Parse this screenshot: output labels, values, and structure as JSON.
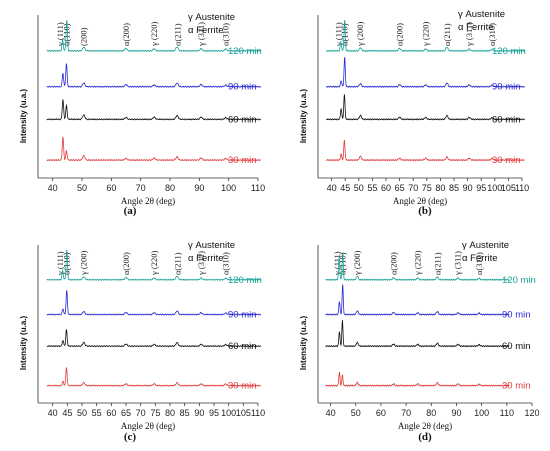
{
  "chart_data": [
    {
      "type": "line",
      "panel_label": "(a)",
      "xlabel": "Angle 2θ (deg)",
      "ylabel": "Intensity (u.a.)",
      "xlim": [
        35,
        110
      ],
      "xticks": [
        "40",
        "50",
        "60",
        "70",
        "80",
        "90",
        "100",
        "110"
      ],
      "legend": [
        "γ Austenite",
        "α Ferrite"
      ],
      "peak_labels": [
        {
          "text": "γ (111)",
          "x": 42.5
        },
        {
          "text": "α(110)",
          "x": 44.8
        },
        {
          "text": "(200)",
          "x": 50.5
        },
        {
          "text": "α(200)",
          "x": 65
        },
        {
          "text": "γ (220)",
          "x": 74.5
        },
        {
          "text": "α(211)",
          "x": 82.5
        },
        {
          "text": "γ (311)",
          "x": 90.5
        },
        {
          "text": "α(310)",
          "x": 99
        }
      ],
      "series": [
        {
          "name": "120 min",
          "color": "#1aa39a",
          "peaks": [
            [
              43.4,
              0.35
            ],
            [
              44.8,
              1.0
            ],
            [
              50.6,
              0.12
            ],
            [
              65,
              0.08
            ],
            [
              74.6,
              0.07
            ],
            [
              82.4,
              0.13
            ],
            [
              90.6,
              0.07
            ],
            [
              99,
              0.06
            ]
          ]
        },
        {
          "name": "90 min",
          "color": "#2a2ad4",
          "peaks": [
            [
              43.5,
              0.45
            ],
            [
              44.7,
              0.75
            ],
            [
              50.6,
              0.12
            ],
            [
              65,
              0.07
            ],
            [
              74.6,
              0.06
            ],
            [
              82.4,
              0.12
            ],
            [
              90.6,
              0.07
            ],
            [
              99,
              0.05
            ]
          ]
        },
        {
          "name": "60 min",
          "color": "#111111",
          "peaks": [
            [
              43.5,
              0.65
            ],
            [
              44.7,
              0.45
            ],
            [
              50.6,
              0.14
            ],
            [
              65,
              0.06
            ],
            [
              74.6,
              0.07
            ],
            [
              82.4,
              0.12
            ],
            [
              90.6,
              0.07
            ],
            [
              99,
              0.05
            ]
          ]
        },
        {
          "name": "30 min",
          "color": "#e23a3a",
          "peaks": [
            [
              43.5,
              0.75
            ],
            [
              44.7,
              0.3
            ],
            [
              50.6,
              0.14
            ],
            [
              65,
              0.05
            ],
            [
              74.6,
              0.07
            ],
            [
              82.4,
              0.1
            ],
            [
              90.6,
              0.07
            ],
            [
              99,
              0.05
            ]
          ]
        }
      ]
    },
    {
      "type": "line",
      "panel_label": "(b)",
      "xlabel": "Angle 2θ (deg)",
      "ylabel": "Intensity (u.a.)",
      "xlim": [
        35,
        110
      ],
      "xticks": [
        "40",
        "45",
        "50",
        "55",
        "60",
        "65",
        "70",
        "75",
        "80",
        "85",
        "90",
        "95",
        "100",
        "105",
        "110"
      ],
      "legend": [
        "γ Austenite",
        "α Ferrite"
      ],
      "peak_labels": [
        {
          "text": "γ (111)",
          "x": 42.5
        },
        {
          "text": "α(110)",
          "x": 44.8
        },
        {
          "text": "γ (200)",
          "x": 50.5
        },
        {
          "text": "α(200)",
          "x": 65
        },
        {
          "text": "γ (220)",
          "x": 74.5
        },
        {
          "text": "α(211)",
          "x": 82.5
        },
        {
          "text": "γ (311)",
          "x": 90.5
        },
        {
          "text": "α(310)",
          "x": 99
        }
      ],
      "series": [
        {
          "name": "120 min",
          "color": "#1aa39a",
          "peaks": [
            [
              43.4,
              0.3
            ],
            [
              44.8,
              1.0
            ],
            [
              50.6,
              0.1
            ],
            [
              65,
              0.08
            ],
            [
              74.6,
              0.06
            ],
            [
              82.4,
              0.12
            ],
            [
              90.6,
              0.06
            ],
            [
              99,
              0.05
            ]
          ]
        },
        {
          "name": "90 min",
          "color": "#2a2ad4",
          "peaks": [
            [
              43.5,
              0.2
            ],
            [
              44.8,
              0.95
            ],
            [
              50.6,
              0.1
            ],
            [
              65,
              0.07
            ],
            [
              74.6,
              0.06
            ],
            [
              82.4,
              0.12
            ],
            [
              90.6,
              0.06
            ],
            [
              99,
              0.05
            ]
          ]
        },
        {
          "name": "60 min",
          "color": "#111111",
          "peaks": [
            [
              43.5,
              0.35
            ],
            [
              44.7,
              0.8
            ],
            [
              50.6,
              0.12
            ],
            [
              65,
              0.07
            ],
            [
              74.6,
              0.06
            ],
            [
              82.4,
              0.12
            ],
            [
              90.6,
              0.06
            ],
            [
              99,
              0.05
            ]
          ]
        },
        {
          "name": "30 min",
          "color": "#e23a3a",
          "peaks": [
            [
              43.5,
              0.2
            ],
            [
              44.7,
              0.65
            ],
            [
              50.6,
              0.12
            ],
            [
              65,
              0.06
            ],
            [
              74.6,
              0.06
            ],
            [
              82.4,
              0.1
            ],
            [
              90.6,
              0.06
            ],
            [
              99,
              0.05
            ]
          ]
        }
      ]
    },
    {
      "type": "line",
      "panel_label": "(c)",
      "xlabel": "Angle 2θ (deg)",
      "ylabel": "Intensity (u.a.)",
      "xlim": [
        35,
        110
      ],
      "xticks": [
        "40",
        "45",
        "50",
        "55",
        "60",
        "65",
        "70",
        "75",
        "80",
        "85",
        "90",
        "95",
        "100",
        "105",
        "110"
      ],
      "legend": [
        "γ Austenite",
        "α Ferrite"
      ],
      "peak_labels": [
        {
          "text": "γ (111)",
          "x": 42.5
        },
        {
          "text": "α(110)",
          "x": 44.8
        },
        {
          "text": "γ (200)",
          "x": 50.5
        },
        {
          "text": "α(200)",
          "x": 65
        },
        {
          "text": "γ (220)",
          "x": 74.5
        },
        {
          "text": "α(211)",
          "x": 82.5
        },
        {
          "text": "γ (311)",
          "x": 90.5
        },
        {
          "text": "α(310)",
          "x": 99
        }
      ],
      "series": [
        {
          "name": "120 min",
          "color": "#1aa39a",
          "peaks": [
            [
              43.4,
              0.3
            ],
            [
              44.8,
              1.0
            ],
            [
              50.6,
              0.1
            ],
            [
              65,
              0.08
            ],
            [
              74.6,
              0.06
            ],
            [
              82.4,
              0.12
            ],
            [
              90.6,
              0.06
            ],
            [
              99,
              0.05
            ]
          ]
        },
        {
          "name": "90 min",
          "color": "#2a2ad4",
          "peaks": [
            [
              43.5,
              0.2
            ],
            [
              44.8,
              0.8
            ],
            [
              50.6,
              0.1
            ],
            [
              65,
              0.07
            ],
            [
              74.6,
              0.06
            ],
            [
              82.4,
              0.12
            ],
            [
              90.6,
              0.06
            ],
            [
              99,
              0.05
            ]
          ]
        },
        {
          "name": "60 min",
          "color": "#111111",
          "peaks": [
            [
              43.5,
              0.2
            ],
            [
              44.7,
              0.55
            ],
            [
              50.6,
              0.12
            ],
            [
              65,
              0.07
            ],
            [
              74.6,
              0.06
            ],
            [
              82.4,
              0.12
            ],
            [
              90.6,
              0.06
            ],
            [
              99,
              0.05
            ]
          ]
        },
        {
          "name": "30 min",
          "color": "#e23a3a",
          "peaks": [
            [
              43.5,
              0.15
            ],
            [
              44.7,
              0.6
            ],
            [
              50.6,
              0.1
            ],
            [
              65,
              0.06
            ],
            [
              74.6,
              0.06
            ],
            [
              82.4,
              0.1
            ],
            [
              90.6,
              0.06
            ],
            [
              99,
              0.05
            ]
          ]
        }
      ]
    },
    {
      "type": "line",
      "panel_label": "(d)",
      "xlabel": "Angle 2θ (deg)",
      "ylabel": "Intensity (u.a.)",
      "xlim": [
        35,
        120
      ],
      "xticks": [
        "40",
        "50",
        "60",
        "70",
        "80",
        "90",
        "100",
        "110",
        "120"
      ],
      "legend": [
        "γ Austenite",
        "α Ferrite"
      ],
      "peak_labels": [
        {
          "text": "γ (111)",
          "x": 42.5
        },
        {
          "text": "α(110)",
          "x": 44.8
        },
        {
          "text": "γ (200)",
          "x": 50.5
        },
        {
          "text": "α(200)",
          "x": 65
        },
        {
          "text": "γ (220)",
          "x": 74.5
        },
        {
          "text": "α(211)",
          "x": 82.5
        },
        {
          "text": "γ (311)",
          "x": 90.5
        },
        {
          "text": "α(310)",
          "x": 99
        }
      ],
      "series": [
        {
          "name": "120 min",
          "color": "#1aa39a",
          "peaks": [
            [
              43.4,
              0.75
            ],
            [
              44.8,
              0.9
            ],
            [
              50.6,
              0.12
            ],
            [
              65,
              0.07
            ],
            [
              74.6,
              0.06
            ],
            [
              82.4,
              0.1
            ],
            [
              90.6,
              0.06
            ],
            [
              99,
              0.05
            ]
          ]
        },
        {
          "name": "90 min",
          "color": "#2a2ad4",
          "peaks": [
            [
              43.5,
              0.45
            ],
            [
              44.8,
              1.0
            ],
            [
              50.6,
              0.12
            ],
            [
              65,
              0.07
            ],
            [
              74.6,
              0.06
            ],
            [
              82.4,
              0.1
            ],
            [
              90.6,
              0.06
            ],
            [
              99,
              0.05
            ]
          ]
        },
        {
          "name": "60 min",
          "color": "#111111",
          "peaks": [
            [
              43.5,
              0.5
            ],
            [
              44.7,
              0.85
            ],
            [
              50.6,
              0.12
            ],
            [
              65,
              0.07
            ],
            [
              74.6,
              0.06
            ],
            [
              82.4,
              0.1
            ],
            [
              90.6,
              0.06
            ],
            [
              99,
              0.05
            ]
          ]
        },
        {
          "name": "30 min",
          "color": "#e23a3a",
          "peaks": [
            [
              43.5,
              0.45
            ],
            [
              44.7,
              0.35
            ],
            [
              50.6,
              0.1
            ],
            [
              65,
              0.06
            ],
            [
              74.6,
              0.06
            ],
            [
              82.4,
              0.1
            ],
            [
              90.6,
              0.06
            ],
            [
              99,
              0.05
            ]
          ]
        }
      ]
    }
  ]
}
